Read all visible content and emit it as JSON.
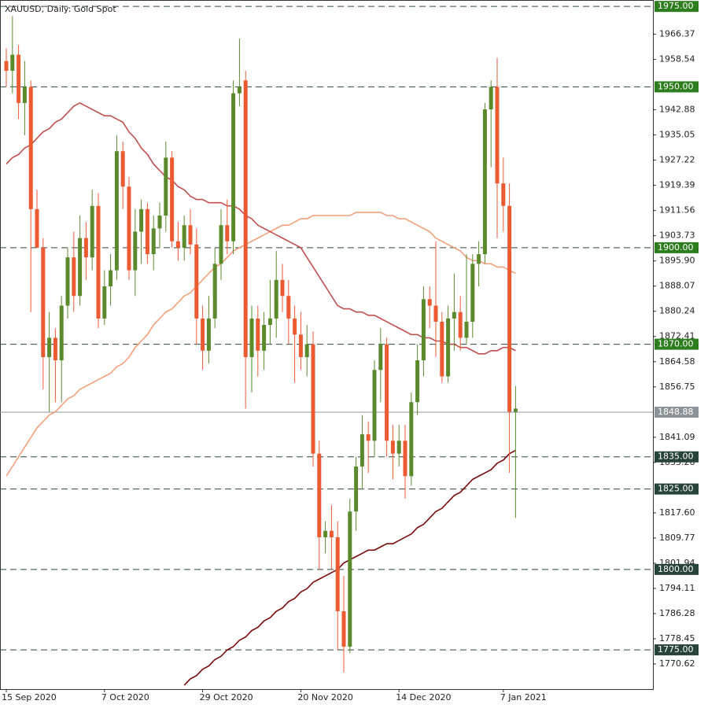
{
  "chart_data": {
    "type": "candlestick",
    "title": "XAUUSD, Daily:  Gold Spot",
    "categories": [
      "15 Sep 2020",
      null,
      null,
      null,
      null,
      null,
      null,
      null,
      null,
      null,
      null,
      null,
      null,
      null,
      null,
      null,
      "7 Oct 2020",
      null,
      null,
      null,
      null,
      null,
      null,
      null,
      null,
      null,
      null,
      null,
      null,
      null,
      null,
      null,
      "29 Oct 2020",
      null,
      null,
      null,
      null,
      null,
      null,
      null,
      null,
      null,
      null,
      null,
      null,
      null,
      null,
      null,
      "20 Nov 2020",
      null,
      null,
      null,
      null,
      null,
      null,
      null,
      null,
      null,
      null,
      null,
      null,
      null,
      null,
      null,
      "14 Dec 2020",
      null,
      null,
      null,
      null,
      null,
      null,
      null,
      null,
      null,
      null,
      null,
      null,
      null,
      null,
      null,
      null,
      "7 Jan 2021",
      null,
      null
    ],
    "open": [
      1958,
      1955,
      1960,
      1945,
      1950,
      1912,
      1900,
      1866,
      1872,
      1865,
      1882,
      1897,
      1885,
      1903,
      1897,
      1913,
      1878,
      1888,
      1893,
      1930,
      1919,
      1893,
      1905,
      1912,
      1898,
      1906,
      1910,
      1928,
      1902,
      1900,
      1907,
      1901,
      1878,
      1868,
      1878,
      1895,
      1907,
      1902,
      1948,
      1952,
      1866,
      1878,
      1868,
      1876,
      1878,
      1890,
      1885,
      1878,
      1873,
      1866,
      1870,
      1836,
      1810,
      1812,
      1810,
      1787,
      1776,
      1818,
      1832,
      1842,
      1840,
      1862,
      1870,
      1840,
      1836,
      1840,
      1829,
      1852,
      1865,
      1884,
      1882,
      1877,
      1860,
      1878,
      1880,
      1872,
      1877,
      1895,
      1898,
      1943,
      1950,
      1920,
      1913,
      1849
    ],
    "high": [
      1962,
      1972,
      1963,
      1958,
      1952,
      1918,
      1903,
      1880,
      1875,
      1885,
      1900,
      1905,
      1910,
      1908,
      1918,
      1917,
      1893,
      1898,
      1935,
      1933,
      1922,
      1912,
      1915,
      1914,
      1910,
      1914,
      1933,
      1930,
      1908,
      1910,
      1912,
      1906,
      1882,
      1885,
      1900,
      1912,
      1915,
      1952,
      1965,
      1955,
      1882,
      1882,
      1880,
      1890,
      1899,
      1895,
      1890,
      1882,
      1880,
      1876,
      1874,
      1840,
      1815,
      1820,
      1815,
      1798,
      1822,
      1835,
      1848,
      1846,
      1865,
      1875,
      1872,
      1845,
      1845,
      1845,
      1855,
      1870,
      1888,
      1888,
      1902,
      1880,
      1882,
      1892,
      1885,
      1898,
      1898,
      1902,
      1945,
      1952,
      1959,
      1928,
      1920,
      1857
    ],
    "low": [
      1950,
      1948,
      1940,
      1935,
      1880,
      1900,
      1856,
      1849,
      1852,
      1852,
      1878,
      1880,
      1882,
      1890,
      1893,
      1875,
      1876,
      1882,
      1890,
      1912,
      1890,
      1885,
      1895,
      1895,
      1893,
      1900,
      1905,
      1900,
      1896,
      1896,
      1898,
      1870,
      1862,
      1864,
      1875,
      1890,
      1898,
      1898,
      1944,
      1850,
      1855,
      1860,
      1862,
      1870,
      1872,
      1880,
      1870,
      1858,
      1862,
      1860,
      1832,
      1800,
      1805,
      1800,
      1775,
      1768,
      1774,
      1812,
      1825,
      1830,
      1835,
      1852,
      1835,
      1828,
      1832,
      1822,
      1826,
      1848,
      1860,
      1875,
      1866,
      1858,
      1858,
      1868,
      1868,
      1870,
      1872,
      1888,
      1895,
      1925,
      1903,
      1905,
      1830,
      1816
    ],
    "close": [
      1955,
      1960,
      1945,
      1950,
      1912,
      1900,
      1866,
      1872,
      1865,
      1882,
      1897,
      1885,
      1903,
      1897,
      1913,
      1878,
      1888,
      1893,
      1930,
      1919,
      1893,
      1905,
      1912,
      1898,
      1906,
      1910,
      1928,
      1902,
      1900,
      1907,
      1901,
      1878,
      1868,
      1878,
      1895,
      1907,
      1902,
      1948,
      1950,
      1866,
      1878,
      1868,
      1876,
      1878,
      1890,
      1885,
      1878,
      1873,
      1866,
      1870,
      1836,
      1810,
      1812,
      1810,
      1787,
      1776,
      1818,
      1832,
      1842,
      1840,
      1862,
      1870,
      1840,
      1836,
      1840,
      1829,
      1852,
      1865,
      1884,
      1882,
      1877,
      1860,
      1878,
      1880,
      1872,
      1877,
      1895,
      1898,
      1943,
      1950,
      1920,
      1913,
      1849,
      1850
    ],
    "up_color": "#5a8a2c",
    "down_color": "#ec5a32",
    "moving_averages": [
      {
        "color": "#f4a07a",
        "values": [
          1829,
          1832,
          1835,
          1838,
          1841,
          1844,
          1846,
          1848,
          1849,
          1851,
          1853,
          1854,
          1856,
          1857,
          1858,
          1859,
          1860,
          1861,
          1863,
          1864,
          1866,
          1869,
          1871,
          1873,
          1876,
          1878,
          1880,
          1881,
          1883,
          1885,
          1886,
          1888,
          1890,
          1892,
          1894,
          1895,
          1897,
          1899,
          1900,
          1901,
          1902,
          1903,
          1904,
          1905,
          1906,
          1907,
          1907,
          1908,
          1909,
          1909,
          1910,
          1910,
          1910,
          1910,
          1910,
          1910,
          1910,
          1911,
          1911,
          1911,
          1911,
          1911,
          1910,
          1910,
          1909,
          1909,
          1908,
          1907,
          1906,
          1905,
          1903,
          1902,
          1901,
          1900,
          1899,
          1897,
          1896,
          1896,
          1895,
          1895,
          1894,
          1894,
          1893,
          1892
        ]
      },
      {
        "color": "#c0504d",
        "values": [
          1926,
          1928,
          1929,
          1931,
          1932,
          1934,
          1936,
          1937,
          1939,
          1940,
          1942,
          1944,
          1945,
          1944,
          1943,
          1942,
          1941,
          1941,
          1940,
          1939,
          1936,
          1934,
          1931,
          1929,
          1926,
          1924,
          1922,
          1921,
          1919,
          1918,
          1916,
          1915,
          1915,
          1914,
          1914,
          1914,
          1913,
          1913,
          1912,
          1910,
          1909,
          1907,
          1906,
          1905,
          1904,
          1903,
          1902,
          1901,
          1900,
          1897,
          1894,
          1891,
          1888,
          1885,
          1882,
          1881,
          1881,
          1880,
          1880,
          1879,
          1879,
          1878,
          1877,
          1876,
          1875,
          1874,
          1873,
          1873,
          1872,
          1872,
          1871,
          1871,
          1870,
          1870,
          1869,
          1869,
          1868,
          1867,
          1867,
          1868,
          1868,
          1869,
          1869,
          1868
        ]
      },
      {
        "color": "#7a0a0a",
        "values": [
          null,
          null,
          null,
          null,
          null,
          null,
          null,
          null,
          null,
          null,
          null,
          null,
          null,
          null,
          null,
          null,
          null,
          null,
          null,
          null,
          null,
          null,
          null,
          null,
          null,
          null,
          null,
          null,
          null,
          1764,
          1766,
          1767,
          1769,
          1770,
          1772,
          1773,
          1775,
          1776,
          1778,
          1779,
          1781,
          1782,
          1784,
          1785,
          1787,
          1788,
          1790,
          1791,
          1793,
          1794,
          1796,
          1797,
          1798,
          1799,
          1800,
          1802,
          1803,
          1804,
          1805,
          1806,
          1806,
          1807,
          1808,
          1808,
          1809,
          1810,
          1811,
          1813,
          1814,
          1816,
          1818,
          1819,
          1821,
          1823,
          1824,
          1826,
          1828,
          1829,
          1830,
          1831,
          1833,
          1834,
          1836,
          1837
        ]
      }
    ],
    "levels": [
      {
        "value": 1975,
        "label": "1975.00",
        "color": "#2e7d1f"
      },
      {
        "value": 1950,
        "label": "1950.00",
        "color": "#2e7d1f"
      },
      {
        "value": 1900,
        "label": "1900.00",
        "color": "#2e7d1f"
      },
      {
        "value": 1870,
        "label": "1870.00",
        "color": "#2e7d1f"
      },
      {
        "value": 1835,
        "label": "1835.00",
        "color": "#27433a"
      },
      {
        "value": 1825,
        "label": "1825.00",
        "color": "#27433a"
      },
      {
        "value": 1800,
        "label": "1800.00",
        "color": "#27433a"
      },
      {
        "value": 1775,
        "label": "1775.00",
        "color": "#27433a"
      }
    ],
    "current_price": 1848.88,
    "current_color": "#8c9499",
    "ylim": [
      1762.8,
      1977
    ],
    "yticks": [
      1966.37,
      1958.54,
      1942.88,
      1935.05,
      1927.22,
      1919.39,
      1911.56,
      1903.73,
      {
        "value": 1895.9,
        "label": "1895.90"
      },
      1888.07,
      1880.24,
      1872.41,
      1864.58,
      1856.75,
      1841.09,
      1833.26,
      {
        "value": 1817.6,
        "label": "1817.60"
      },
      1809.77,
      1801.94,
      1794.11,
      1786.28,
      1778.45,
      1770.62
    ]
  }
}
